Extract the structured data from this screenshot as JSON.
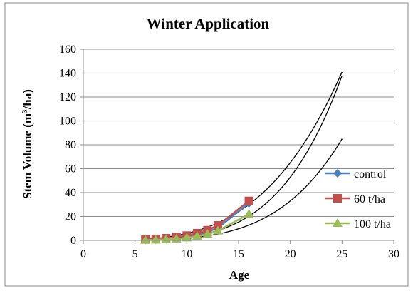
{
  "chart_data": {
    "type": "scatter",
    "title": "Winter Application",
    "xlabel": "Age",
    "ylabel_main": "Stem Volume (m",
    "ylabel_sup": "3",
    "ylabel_end": "/ha)",
    "xlim": [
      0,
      30
    ],
    "ylim": [
      0,
      160
    ],
    "x_ticks": [
      0,
      5,
      10,
      15,
      20,
      25,
      30
    ],
    "y_ticks": [
      0,
      20,
      40,
      60,
      80,
      100,
      120,
      140,
      160
    ],
    "x_tick_labels": [
      "0",
      "5",
      "10",
      "15",
      "20",
      "25",
      "30"
    ],
    "y_tick_labels": [
      "0",
      "20",
      "40",
      "60",
      "80",
      "100",
      "120",
      "140",
      "160"
    ],
    "grid": "horizontal",
    "legend_position": "right",
    "series": [
      {
        "name": "control",
        "color": "#4A7EBB",
        "marker": "diamond",
        "x": [
          6,
          7,
          8,
          9,
          10,
          11,
          12,
          13,
          16
        ],
        "y": [
          0.3,
          0.6,
          1.0,
          1.8,
          3.0,
          4.5,
          7.0,
          10.5,
          31
        ]
      },
      {
        "name": "60 t/ha",
        "color": "#C0504D",
        "marker": "square",
        "x": [
          6,
          7,
          8,
          9,
          10,
          11,
          12,
          13,
          16
        ],
        "y": [
          1.0,
          1.2,
          1.8,
          2.8,
          4.0,
          6.0,
          8.5,
          12.5,
          33
        ]
      },
      {
        "name": "100 t/ha",
        "color": "#9BBB59",
        "marker": "triangle",
        "x": [
          6,
          7,
          8,
          9,
          10,
          11,
          12,
          13,
          16
        ],
        "y": [
          0.2,
          0.4,
          0.8,
          1.3,
          2.2,
          3.5,
          5.2,
          8.0,
          22
        ]
      }
    ],
    "trendlines": [
      {
        "series": "control",
        "x": [
          6,
          25
        ],
        "y": [
          0.3,
          138
        ]
      },
      {
        "series": "60 t/ha",
        "x": [
          6,
          25
        ],
        "y": [
          1.0,
          141
        ]
      },
      {
        "series": "100 t/ha",
        "x": [
          6,
          25
        ],
        "y": [
          0.2,
          85
        ]
      }
    ]
  }
}
